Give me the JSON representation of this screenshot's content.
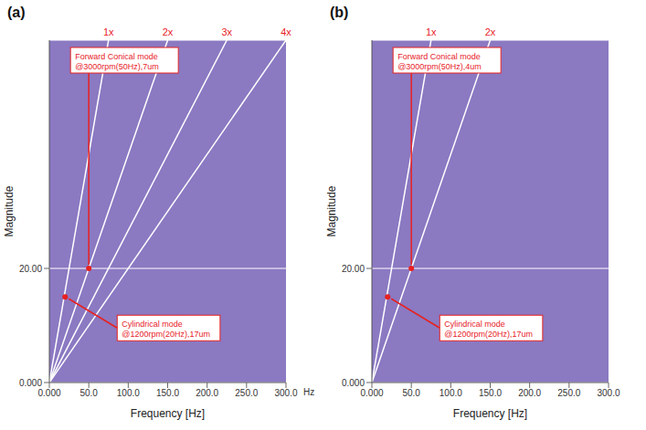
{
  "chart_data": [
    {
      "type": "line",
      "title": "(a)",
      "x_label": "Frequency [Hz]",
      "y_label": "Magnitude",
      "x_unit_label": "Hz",
      "xlim": [
        0,
        300
      ],
      "xticks": [
        {
          "value": 0,
          "label": "0.000"
        },
        {
          "value": 50,
          "label": "50.0"
        },
        {
          "value": 100,
          "label": "100.0"
        },
        {
          "value": 150,
          "label": "150.0"
        },
        {
          "value": 200,
          "label": "200.0"
        },
        {
          "value": 250,
          "label": "250.0"
        },
        {
          "value": 300,
          "label": "300.0"
        }
      ],
      "ylim": [
        0,
        60
      ],
      "yticks": [
        {
          "value": 0,
          "label": "0.000"
        },
        {
          "value": 20,
          "label": "20.00"
        }
      ],
      "grid": true,
      "series": [
        {
          "name": "1x",
          "color": "#ffffff",
          "x": [
            0,
            75
          ],
          "values": [
            0,
            60
          ]
        },
        {
          "name": "2x",
          "color": "#ffffff",
          "x": [
            0,
            150
          ],
          "values": [
            0,
            60
          ]
        },
        {
          "name": "3x",
          "color": "#ffffff",
          "x": [
            0,
            225
          ],
          "values": [
            0,
            60
          ]
        },
        {
          "name": "4x",
          "color": "#ffffff",
          "x": [
            0,
            300
          ],
          "values": [
            0,
            60
          ]
        }
      ],
      "annotations": [
        {
          "text": [
            "Forward Conical mode",
            "@3000rpm(50Hz),7um"
          ],
          "x": 50,
          "y": 20,
          "color": "#e8211f"
        },
        {
          "text": [
            "Cylindrical mode",
            "@1200rpm(20Hz),17um"
          ],
          "x": 20,
          "y": 15,
          "color": "#e8211f"
        }
      ]
    },
    {
      "type": "line",
      "title": "(b)",
      "x_label": "Frequency [Hz]",
      "y_label": "Magnitude",
      "xlim": [
        0,
        300
      ],
      "xticks": [
        {
          "value": 0,
          "label": "0.000"
        },
        {
          "value": 50,
          "label": "50.0"
        },
        {
          "value": 100,
          "label": "100.0"
        },
        {
          "value": 150,
          "label": "150.0"
        },
        {
          "value": 200,
          "label": "200.0"
        },
        {
          "value": 250,
          "label": "250.0"
        },
        {
          "value": 300,
          "label": "300.0"
        }
      ],
      "ylim": [
        0,
        60
      ],
      "yticks": [
        {
          "value": 0,
          "label": "0.000"
        },
        {
          "value": 20,
          "label": "20.00"
        }
      ],
      "grid": true,
      "series": [
        {
          "name": "1x",
          "color": "#ffffff",
          "x": [
            0,
            75
          ],
          "values": [
            0,
            60
          ]
        },
        {
          "name": "2x",
          "color": "#ffffff",
          "x": [
            0,
            150
          ],
          "values": [
            0,
            60
          ]
        }
      ],
      "annotations": [
        {
          "text": [
            "Forward Conical mode",
            "@3000rpm(50Hz),4um"
          ],
          "x": 50,
          "y": 20,
          "color": "#e8211f"
        },
        {
          "text": [
            "Cylindrical mode",
            "@1200rpm(20Hz),17um"
          ],
          "x": 20,
          "y": 15,
          "color": "#e8211f"
        }
      ]
    }
  ]
}
